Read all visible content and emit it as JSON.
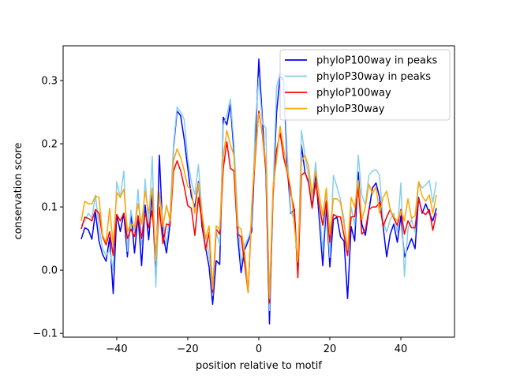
{
  "chart_data": {
    "type": "line",
    "title": "",
    "xlabel": "position relative to motif",
    "ylabel": "conservation score",
    "xlim": [
      -55.1,
      55.1
    ],
    "ylim": [
      -0.106,
      0.355
    ],
    "xticks": [
      -40,
      -20,
      0,
      20,
      40
    ],
    "xtick_labels": [
      "−40",
      "−20",
      "0",
      "20",
      "40"
    ],
    "yticks": [
      -0.1,
      0.0,
      0.1,
      0.2,
      0.3
    ],
    "ytick_labels": [
      "−0.1",
      "0.0",
      "0.1",
      "0.2",
      "0.3"
    ],
    "grid": false,
    "legend_position": "top-right",
    "x_start": -50,
    "x_end": 50,
    "series": [
      {
        "name": "phyloP100way in peaks",
        "color": "#0000ff",
        "values": [
          0.049,
          0.067,
          0.064,
          0.049,
          0.092,
          0.046,
          0.025,
          0.014,
          0.052,
          -0.037,
          0.088,
          0.061,
          0.09,
          0.021,
          0.09,
          0.027,
          0.086,
          0.007,
          0.103,
          0.048,
          0.123,
          -0.018,
          0.182,
          0.057,
          0.027,
          0.073,
          0.195,
          0.252,
          0.244,
          0.207,
          0.161,
          0.117,
          0.1,
          0.14,
          0.069,
          0.036,
          0.005,
          -0.054,
          0.015,
          0.009,
          0.242,
          0.23,
          0.262,
          0.186,
          0.057,
          -0.004,
          0.032,
          0.046,
          0.061,
          0.198,
          0.334,
          0.24,
          0.153,
          -0.085,
          0.119,
          0.249,
          0.307,
          0.3,
          0.165,
          0.09,
          0.096,
          -0.006,
          0.198,
          0.155,
          0.14,
          0.103,
          0.153,
          0.082,
          0.007,
          0.103,
          0.005,
          0.08,
          0.084,
          0.053,
          0.046,
          -0.045,
          0.069,
          0.046,
          0.155,
          0.073,
          0.055,
          0.094,
          0.13,
          0.138,
          0.115,
          0.069,
          0.021,
          0.057,
          0.073,
          0.044,
          0.086,
          0.021,
          0.036,
          0.05,
          0.034,
          0.115,
          0.09,
          0.105,
          0.09,
          0.078,
          0.098
        ]
      },
      {
        "name": "phyloP30way in peaks",
        "color": "#87ceeb",
        "values": [
          0.071,
          0.078,
          0.09,
          0.082,
          0.119,
          0.069,
          0.034,
          0.023,
          0.032,
          0.0,
          0.14,
          0.115,
          0.157,
          0.03,
          0.095,
          0.06,
          0.128,
          0.04,
          0.144,
          0.07,
          0.18,
          -0.027,
          0.12,
          0.08,
          0.04,
          0.09,
          0.2,
          0.258,
          0.25,
          0.238,
          0.175,
          0.14,
          0.12,
          0.167,
          0.09,
          0.05,
          0.025,
          -0.04,
          0.06,
          0.04,
          0.23,
          0.245,
          0.271,
          0.2,
          0.09,
          0.01,
          0.04,
          0.05,
          0.07,
          0.23,
          0.305,
          0.232,
          0.225,
          -0.064,
          0.12,
          0.29,
          0.311,
          0.309,
          0.184,
          0.093,
          0.08,
          0.0,
          0.221,
          0.182,
          0.15,
          0.11,
          0.171,
          0.1,
          0.03,
          0.12,
          0.02,
          0.15,
          0.132,
          0.111,
          0.08,
          0.023,
          0.1,
          0.07,
          0.182,
          0.119,
          0.103,
          0.15,
          0.157,
          0.159,
          0.15,
          0.078,
          0.06,
          0.08,
          0.09,
          0.06,
          0.138,
          -0.01,
          0.065,
          0.08,
          0.06,
          0.14,
          0.13,
          0.135,
          0.142,
          0.107,
          0.14
        ]
      },
      {
        "name": "phyloP100way",
        "color": "#ff0000",
        "values": [
          0.065,
          0.084,
          0.082,
          0.078,
          0.096,
          0.09,
          0.053,
          0.04,
          0.061,
          0.023,
          0.088,
          0.078,
          0.09,
          0.05,
          0.065,
          0.053,
          0.086,
          0.05,
          0.09,
          0.067,
          0.094,
          0.023,
          0.1,
          0.042,
          0.073,
          0.071,
          0.157,
          0.173,
          0.157,
          0.132,
          0.102,
          0.098,
          0.055,
          0.115,
          0.077,
          0.032,
          0.06,
          -0.035,
          0.065,
          0.057,
          0.161,
          0.203,
          0.161,
          0.157,
          0.057,
          0.053,
          0.011,
          -0.035,
          0.094,
          0.18,
          0.252,
          0.215,
          0.16,
          -0.052,
          0.12,
          0.19,
          0.217,
          0.178,
          0.155,
          0.121,
          0.096,
          -0.012,
          0.15,
          0.155,
          0.138,
          0.098,
          0.138,
          0.103,
          0.071,
          0.109,
          0.044,
          0.088,
          0.085,
          0.084,
          0.055,
          0.023,
          0.084,
          0.085,
          0.132,
          0.057,
          0.063,
          0.096,
          0.1,
          0.1,
          0.107,
          0.069,
          0.084,
          0.096,
          0.082,
          0.071,
          0.096,
          0.057,
          0.078,
          0.067,
          0.067,
          0.113,
          0.092,
          0.088,
          0.096,
          0.063,
          0.09
        ]
      },
      {
        "name": "phyloP30way",
        "color": "#ffa500",
        "values": [
          0.078,
          0.109,
          0.105,
          0.105,
          0.117,
          0.115,
          0.055,
          0.044,
          0.098,
          0.04,
          0.123,
          0.115,
          0.128,
          0.061,
          0.073,
          0.069,
          0.105,
          0.073,
          0.125,
          0.09,
          0.13,
          0.015,
          0.123,
          0.069,
          0.103,
          0.078,
          0.173,
          0.192,
          0.178,
          0.157,
          0.132,
          0.128,
          0.09,
          0.138,
          0.09,
          0.05,
          0.07,
          -0.03,
          0.07,
          0.065,
          0.18,
          0.221,
          0.198,
          0.182,
          0.07,
          0.065,
          0.03,
          -0.035,
          0.1,
          0.19,
          0.248,
          0.218,
          0.17,
          -0.045,
          0.13,
          0.175,
          0.228,
          0.192,
          0.159,
          0.13,
          0.071,
          0.013,
          0.171,
          0.182,
          0.165,
          0.119,
          0.157,
          0.119,
          0.086,
          0.13,
          0.057,
          0.113,
          0.113,
          0.107,
          0.073,
          0.032,
          0.115,
          0.1,
          0.142,
          0.08,
          0.1,
          0.136,
          0.121,
          0.132,
          0.09,
          0.115,
          0.125,
          0.096,
          0.084,
          0.078,
          0.094,
          0.078,
          0.113,
          0.082,
          0.086,
          0.14,
          0.117,
          0.109,
          0.119,
          0.09,
          0.119
        ]
      }
    ]
  }
}
